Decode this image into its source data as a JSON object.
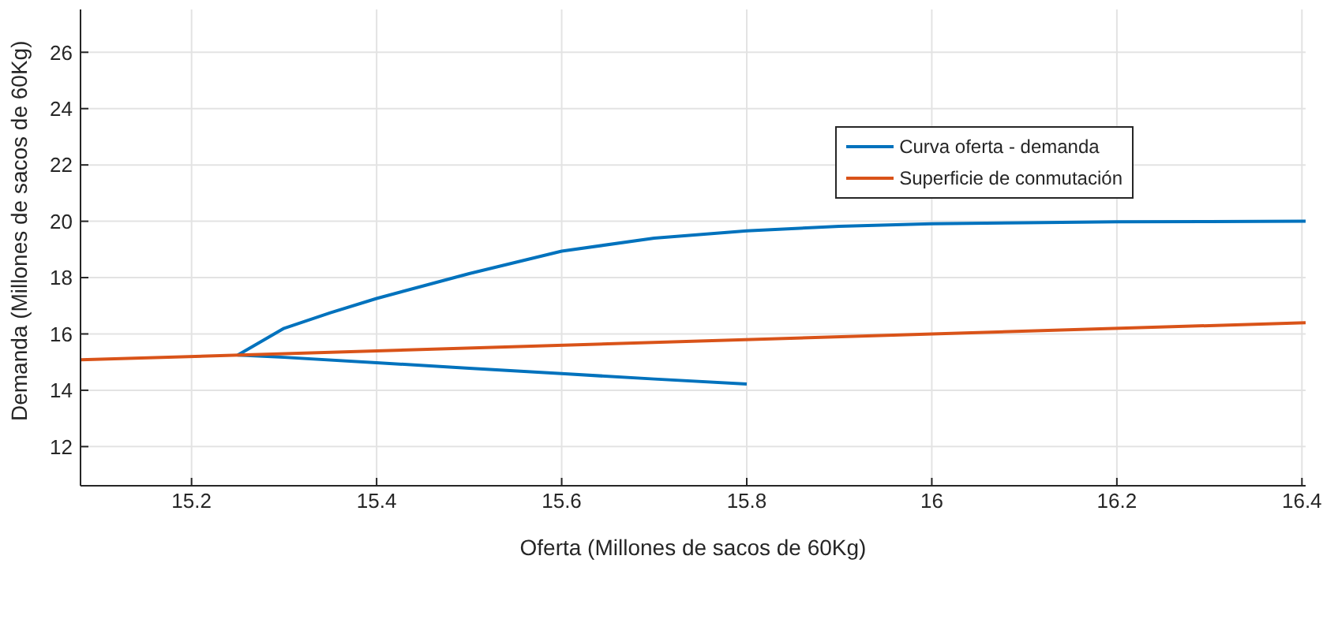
{
  "chart_data": {
    "type": "line",
    "xlabel": "Oferta (Millones de sacos de 60Kg)",
    "ylabel": "Demanda (Millones de sacos de 60Kg)",
    "xlim": [
      15.08,
      16.404
    ],
    "xticks": [
      15.2,
      15.4,
      15.6,
      15.8,
      16,
      16.2,
      16.4
    ],
    "ylim": [
      10.61,
      27.52
    ],
    "yticks": [
      12,
      14,
      16,
      18,
      20,
      22,
      24,
      26
    ],
    "grid": true,
    "legend": "top right",
    "marker": "none",
    "line_style": "solid",
    "series": [
      {
        "name": "Curva oferta - demanda",
        "color": "#0072bd",
        "x": [
          15.8,
          15.7,
          15.6,
          15.5,
          15.4,
          15.3,
          15.25,
          15.3,
          15.35,
          15.4,
          15.5,
          15.6,
          15.7,
          15.8,
          15.9,
          16,
          16.1,
          16.2,
          16.3,
          16.404
        ],
        "values": [
          14.22,
          14.4,
          14.59,
          14.78,
          14.98,
          15.17,
          15.25,
          16.2,
          16.75,
          17.26,
          18.14,
          18.94,
          19.4,
          19.66,
          19.82,
          19.91,
          19.95,
          19.98,
          19.99,
          20
        ]
      },
      {
        "name": "Superficie de conmutación",
        "color": "#d95319",
        "x": [
          15.08,
          16.404
        ],
        "values": [
          15.08,
          16.4
        ]
      }
    ]
  }
}
